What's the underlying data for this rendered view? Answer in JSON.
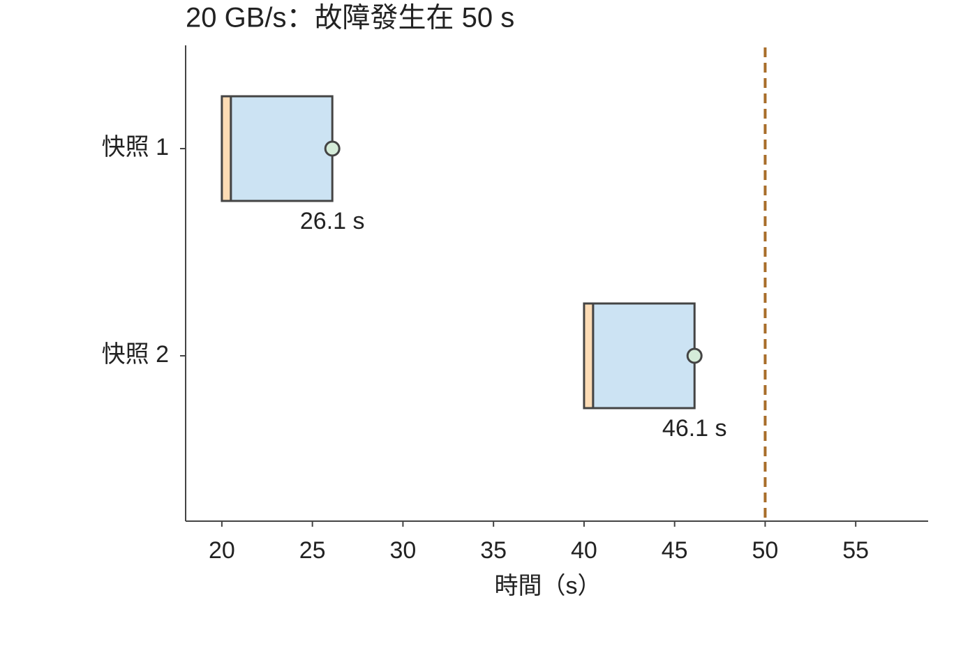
{
  "chart_data": {
    "type": "gantt",
    "title": "20 GB/s：故障發生在 50 s",
    "xlabel": "時間（s）",
    "categories": [
      "快照 1",
      "快照 2"
    ],
    "starts": [
      20,
      40
    ],
    "series": [
      {
        "color": "#fddcb5",
        "values": [
          0.5,
          0.5
        ]
      },
      {
        "color": "#cce3f3",
        "values": [
          5.6,
          5.6
        ]
      }
    ],
    "markers": [
      26.1,
      46.1
    ],
    "marker_labels": [
      "26.1 s",
      "46.1 s"
    ],
    "marker_color": "#d5ecd9",
    "event_line": 50,
    "event_color": "#a86d2a",
    "xlim": [
      18,
      59
    ],
    "xticks": [
      20,
      25,
      30,
      35,
      40,
      45,
      50,
      55
    ]
  }
}
